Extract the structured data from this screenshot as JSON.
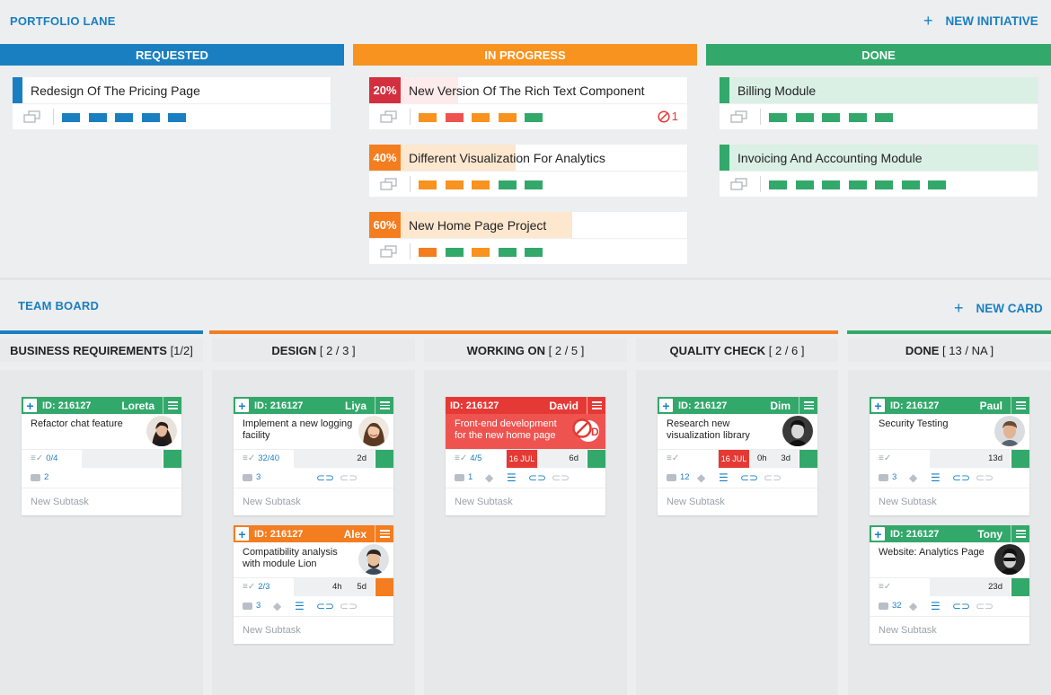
{
  "portfolio": {
    "title": "PORTFOLIO LANE",
    "add_label": "NEW INITIATIVE",
    "lanes": [
      {
        "name": "REQUESTED",
        "color": "#1a7fc0"
      },
      {
        "name": "IN PROGRESS",
        "color": "#f7931e"
      },
      {
        "name": "DONE",
        "color": "#33a86b"
      }
    ],
    "cards": {
      "pricing": {
        "title": "Redesign Of The Pricing Page",
        "bar_color": "#1a7fc0",
        "squares": [
          "#1a7fc0",
          "#1a7fc0",
          "#1a7fc0",
          "#1a7fc0",
          "#1a7fc0"
        ]
      },
      "richtext": {
        "title": "New Version Of The Rich Text Component",
        "percent": "20%",
        "progress": 0.2,
        "pct_color": "#d32f3f",
        "fill_color": "#fdeaea",
        "blocked": "1",
        "squares": [
          "#f7931e",
          "#ef5350",
          "#f7931e",
          "#f7931e",
          "#33a86b"
        ]
      },
      "analytics": {
        "title": "Different Visualization For Analytics",
        "percent": "40%",
        "progress": 0.4,
        "pct_color": "#f47d20",
        "fill_color": "#fde7cf",
        "squares": [
          "#f7931e",
          "#f7931e",
          "#f7931e",
          "#33a86b",
          "#33a86b"
        ]
      },
      "homepage": {
        "title": "New Home Page Project",
        "percent": "60%",
        "progress": 0.6,
        "pct_color": "#f47d20",
        "fill_color": "#fde7cf",
        "squares": [
          "#f47d20",
          "#33a86b",
          "#f7931e",
          "#33a86b",
          "#33a86b"
        ]
      },
      "billing": {
        "title": "Billing Module",
        "bar_color": "#33a86b",
        "fill_color": "#daf0e4",
        "squares": [
          "#33a86b",
          "#33a86b",
          "#33a86b",
          "#33a86b",
          "#33a86b"
        ]
      },
      "invoicing": {
        "title": "Invoicing And Accounting Module",
        "bar_color": "#33a86b",
        "fill_color": "#daf0e4",
        "squares": [
          "#33a86b",
          "#33a86b",
          "#33a86b",
          "#33a86b",
          "#33a86b",
          "#33a86b",
          "#33a86b"
        ]
      }
    }
  },
  "team": {
    "title": "TEAM BOARD",
    "add_label": "NEW CARD",
    "columns": {
      "business": {
        "name": "BUSINESS REQUIREMENTS",
        "count": "[1/2]"
      },
      "design": {
        "name": "DESIGN",
        "count": "[ 2 / 3 ]"
      },
      "working": {
        "name": "WORKING ON",
        "count": "[ 2 / 5 ]"
      },
      "quality": {
        "name": "QUALITY CHECK",
        "count": "[ 2 / 6 ]"
      },
      "done": {
        "name": "DONE",
        "count": "[ 13 / NA ]"
      }
    },
    "cards": {
      "loreta": {
        "id": "ID: 216127",
        "owner": "Loreta",
        "title": "Refactor chat feature",
        "checklist": "0/4",
        "comments": "2",
        "subtask": "New Subtask"
      },
      "liya": {
        "id": "ID: 216127",
        "owner": "Liya",
        "title": "Implement a new logging facility",
        "checklist": "32/40",
        "time": "2d",
        "comments": "3",
        "subtask": "New Subtask"
      },
      "alex": {
        "id": "ID: 216127",
        "owner": "Alex",
        "title": "Compatibility analysis with module Lion",
        "checklist": "2/3",
        "time1": "4h",
        "time2": "5d",
        "comments": "3",
        "subtask": "New Subtask"
      },
      "david": {
        "id": "ID: 216127",
        "owner": "David",
        "title": "Front-end development for the new home page",
        "checklist": "4/5",
        "date": "16 JUL",
        "time": "6d",
        "comments": "1",
        "subtask": "New Subtask"
      },
      "dim": {
        "id": "ID: 216127",
        "owner": "Dim",
        "title": "Research new visualization library",
        "date": "16 JUL",
        "time1": "0h",
        "time2": "3d",
        "comments": "12",
        "subtask": "New Subtask"
      },
      "paul": {
        "id": "ID: 216127",
        "owner": "Paul",
        "title": "Security Testing",
        "time": "13d",
        "comments": "3",
        "subtask": "New Subtask"
      },
      "tony": {
        "id": "ID: 216127",
        "owner": "Tony",
        "title": "Website: Analytics Page",
        "time": "23d",
        "comments": "32",
        "subtask": "New Subtask"
      }
    }
  },
  "colors": {
    "blue": "#1a7fc0",
    "orange": "#f47d20",
    "green": "#33a86b",
    "red": "#e53935"
  }
}
